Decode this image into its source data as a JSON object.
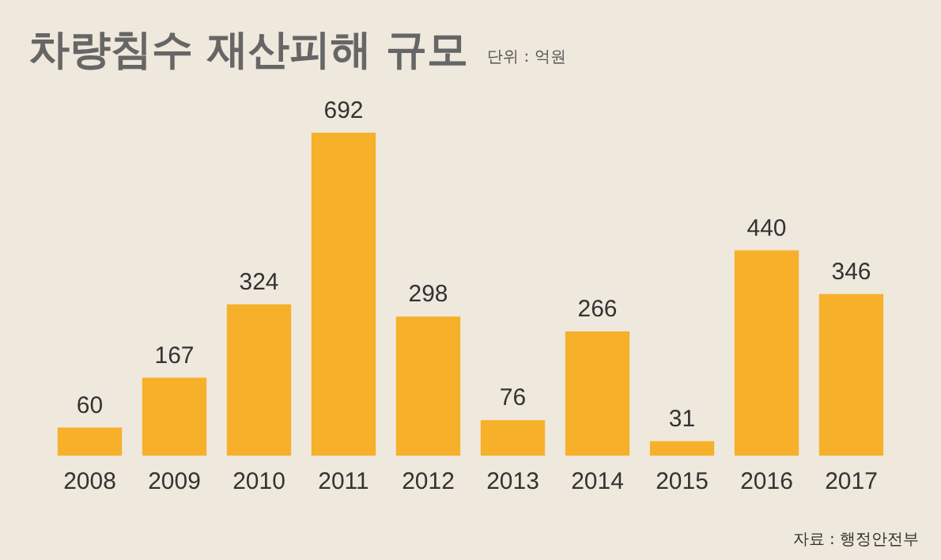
{
  "chart_data": {
    "type": "bar",
    "title": "차량침수 재산피해 규모",
    "subtitle": "단위 : 억원",
    "categories": [
      "2008",
      "2009",
      "2010",
      "2011",
      "2012",
      "2013",
      "2014",
      "2015",
      "2016",
      "2017"
    ],
    "values": [
      60,
      167,
      324,
      692,
      298,
      76,
      266,
      31,
      440,
      346
    ],
    "color": "#f7b02a",
    "data_labels": true,
    "grid": false,
    "legend": false,
    "annotations": [
      "자료 : 행정안전부"
    ]
  }
}
